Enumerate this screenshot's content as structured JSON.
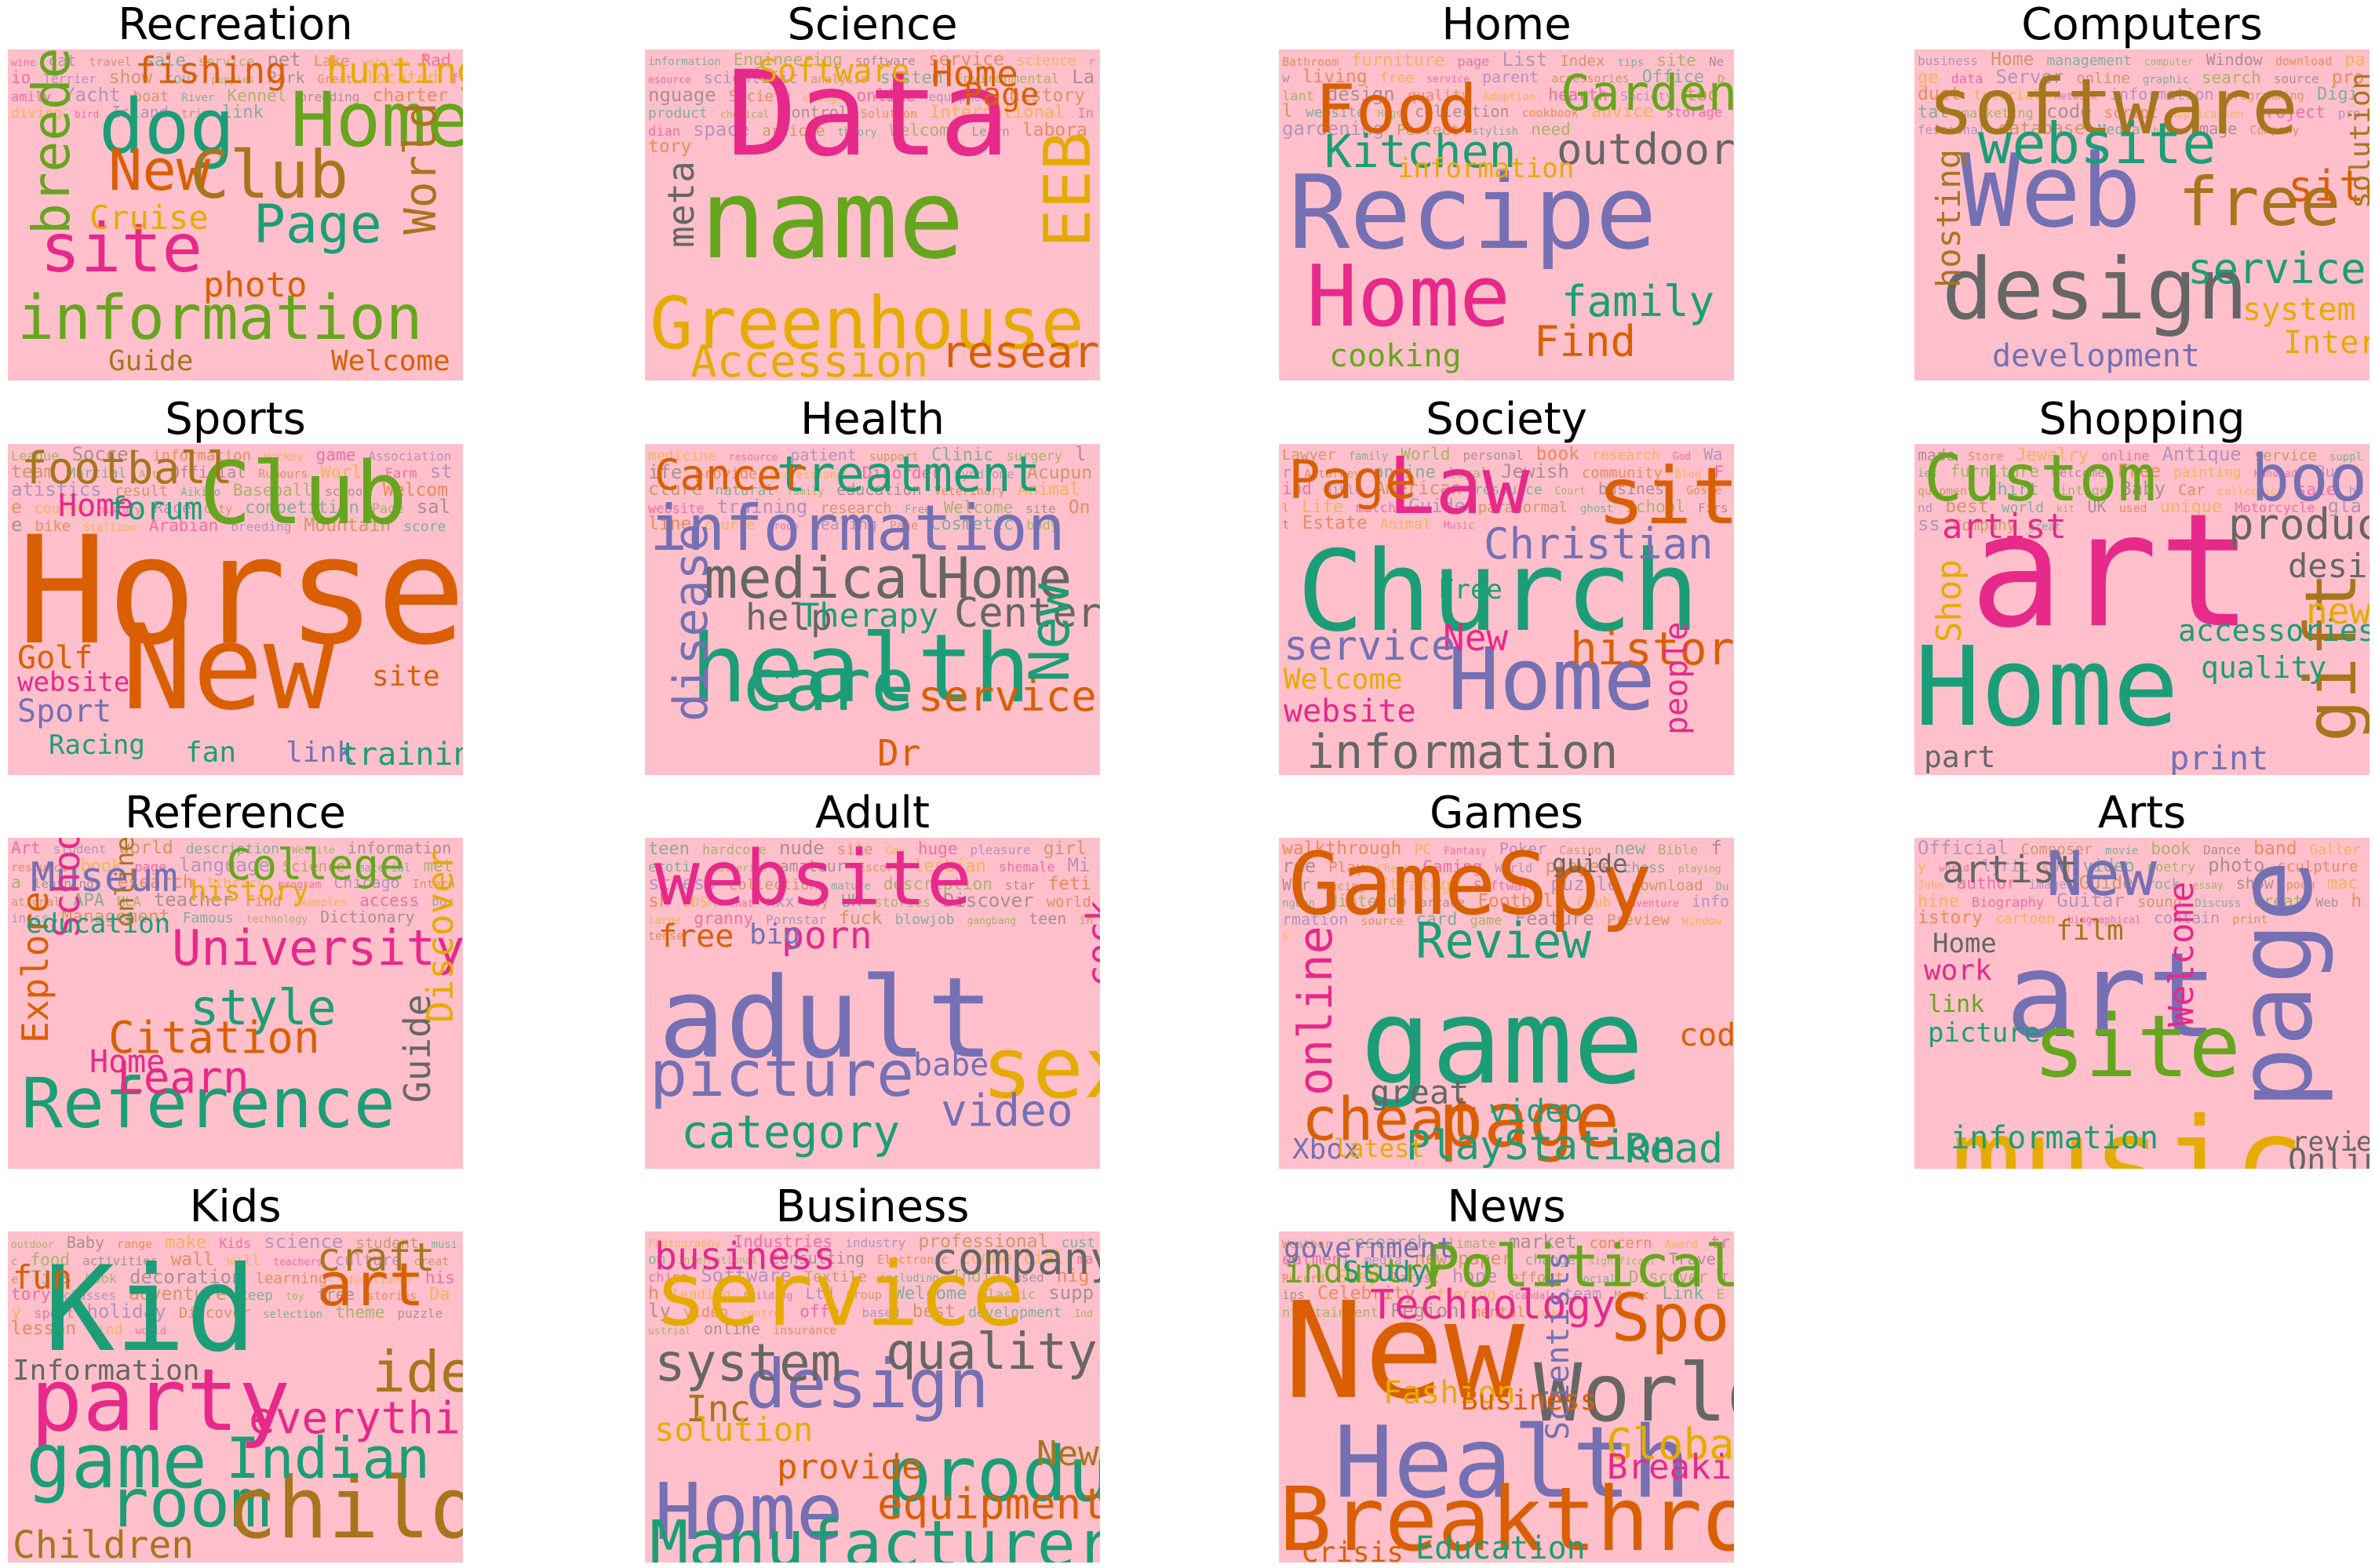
{
  "colors": {
    "panel_background": "#ffc0cb",
    "palette": [
      "#e7298a",
      "#1b9e77",
      "#d95f02",
      "#7570b3",
      "#66a61e",
      "#e6ab02",
      "#a6761d",
      "#666666"
    ]
  },
  "panels": [
    {
      "title": "Recreation",
      "words": [
        "information",
        "Home",
        "site",
        "Page",
        "dog",
        "New",
        "Club",
        "World",
        "breeder",
        "fishing",
        "hunting",
        "Cruise",
        "photo",
        "Guide",
        "Welcome",
        "wine",
        "cat",
        "travel",
        "sale",
        "service",
        "pet",
        "Lake",
        "website",
        "Radio",
        "Terrier",
        "show",
        "tour",
        "puppies",
        "Park",
        "Great",
        "located",
        "family",
        "Yacht",
        "boat",
        "River",
        "Kennel",
        "breeding",
        "charter",
        "diving",
        "bird",
        "Island",
        "trip",
        "link"
      ]
    },
    {
      "title": "Science",
      "words": [
        "Data",
        "name",
        "Greenhouse",
        "Accession",
        "research",
        "EEB",
        "meta",
        "Software",
        "Home",
        "Page",
        "information",
        "Engineering",
        "software",
        "service",
        "science",
        "resource",
        "scientific",
        "analysis",
        "system",
        "Environmental",
        "Language",
        "Society",
        "design",
        "online",
        "equipment",
        "history",
        "product",
        "chemical",
        "Control",
        "Solution",
        "International",
        "Indian",
        "space",
        "article",
        "theory",
        "Welcome",
        "Learn",
        "laboratory"
      ]
    },
    {
      "title": "Home",
      "words": [
        "Recipe",
        "Home",
        "Food",
        "Garden",
        "Kitchen",
        "outdoor",
        "family",
        "Find",
        "cooking",
        "information",
        "Bathroom",
        "furniture",
        "page",
        "List",
        "Index",
        "tips",
        "site",
        "New",
        "living",
        "free",
        "service",
        "parent",
        "accessories",
        "Office",
        "plant",
        "design",
        "quality",
        "Adoption",
        "hearth",
        "Society",
        "tool",
        "website",
        "Hugs",
        "collection",
        "cookbook",
        "advice",
        "storage",
        "gardening",
        "Perfect",
        "stylish",
        "need"
      ]
    },
    {
      "title": "Computers",
      "words": [
        "software",
        "Web",
        "design",
        "website",
        "free",
        "site",
        "service",
        "development",
        "hosting",
        "system",
        "Internet",
        "solution",
        "business",
        "Home",
        "management",
        "computer",
        "Window",
        "download",
        "page",
        "data",
        "Server",
        "online",
        "graphic",
        "search",
        "source",
        "product",
        "tutorial",
        "network",
        "information",
        "programming",
        "Digital",
        "marketing",
        "code",
        "script",
        "application",
        "project",
        "professional",
        "database",
        "Media",
        "help",
        "image",
        "Company"
      ]
    },
    {
      "title": "Sports",
      "words": [
        "Horse",
        "New",
        "Club",
        "football",
        "Home",
        "forum",
        "Golf",
        "website",
        "Sport",
        "Racing",
        "fan",
        "link",
        "training",
        "site",
        "League",
        "Soccer",
        "information",
        "Hockey",
        "game",
        "Association",
        "team",
        "Martial",
        "Art",
        "Official",
        "Rumours",
        "World",
        "Farm",
        "statistics",
        "result",
        "Aikido",
        "Baseball",
        "school",
        "Welcome",
        "course",
        "history",
        "Race",
        "City",
        "competition",
        "Page",
        "sale",
        "bike",
        "Stallion",
        "Arabian",
        "breeding",
        "Mountain",
        "score"
      ]
    },
    {
      "title": "Health",
      "words": [
        "health",
        "information",
        "medical",
        "Home",
        "care",
        "treatment",
        "Cancer",
        "help",
        "Therapy",
        "Center",
        "service",
        "disease",
        "New",
        "Dr",
        "medicine",
        "resource",
        "patient",
        "support",
        "Clinic",
        "surgery",
        "life",
        "provide",
        "professional",
        "Disorder",
        "Syndrome",
        "Acupuncture",
        "natural",
        "family",
        "education",
        "Veterinary",
        "Animal",
        "website",
        "training",
        "research",
        "Free",
        "Welcome",
        "site",
        "Online",
        "course",
        "Group",
        "healing",
        "Page",
        "Cosmetic",
        "body"
      ]
    },
    {
      "title": "Society",
      "words": [
        "Church",
        "Law",
        "site",
        "Home",
        "information",
        "Page",
        "Christian",
        "history",
        "New",
        "service",
        "Welcome",
        "website",
        "Free",
        "people",
        "Lawyer",
        "family",
        "World",
        "personal",
        "book",
        "research",
        "God",
        "War",
        "Attorney",
        "online",
        "legal",
        "Jewish",
        "community",
        "Blog",
        "Find",
        "Bible",
        "American",
        "resource",
        "Court",
        "business",
        "Gospel",
        "Life",
        "match",
        "Guide",
        "paranormal",
        "ghost",
        "School",
        "First",
        "Estate",
        "Animal",
        "Music"
      ]
    },
    {
      "title": "Shopping",
      "words": [
        "art",
        "Home",
        "Custom",
        "book",
        "gift",
        "product",
        "artist",
        "Shop",
        "quality",
        "design",
        "accessories",
        "new",
        "part",
        "print",
        "made",
        "Store",
        "Jewelry",
        "online",
        "Antique",
        "service",
        "supplies",
        "furniture",
        "Welcome",
        "Free",
        "painting",
        "Handmade",
        "Buy",
        "equipment",
        "shirt",
        "vintage",
        "Baby",
        "Car",
        "collection",
        "sale",
        "hand",
        "best",
        "world",
        "kit",
        "UK",
        "used",
        "unique",
        "Motorcycle",
        "glass",
        "Company",
        "great"
      ]
    },
    {
      "title": "Reference",
      "words": [
        "Reference",
        "University",
        "College",
        "Museum",
        "style",
        "School",
        "Citation",
        "Learn",
        "Home",
        "Guide",
        "Discover",
        "Explore",
        "education",
        "history",
        "online",
        "Art",
        "student",
        "world",
        "description",
        "Website",
        "information",
        "resource",
        "book",
        "page",
        "language",
        "Science",
        "material",
        "meta",
        "learning",
        "research",
        "library",
        "program",
        "Chicago",
        "International",
        "APA",
        "MLA",
        "teacher",
        "Find",
        "examples",
        "access",
        "business",
        "Management",
        "Famous",
        "technology",
        "Dictionary"
      ]
    },
    {
      "title": "Adult",
      "words": [
        "adult",
        "website",
        "picture",
        "sex",
        "category",
        "video",
        "porn",
        "cock",
        "free",
        "big",
        "babe",
        "teen",
        "hardcore",
        "nude",
        "site",
        "Gay",
        "huge",
        "pleasure",
        "girl",
        "erotic",
        "galleries",
        "amateur",
        "Escort",
        "lesbian",
        "shemale",
        "Mistress",
        "collection",
        "mature",
        "description",
        "star",
        "fetish",
        "BDSM",
        "chat",
        "xxx",
        "toy",
        "UK",
        "stories",
        "Discover",
        "world",
        "large",
        "granny",
        "Pornstar",
        "fuck",
        "blowjob",
        "gangbang",
        "teen",
        "intense"
      ]
    },
    {
      "title": "Games",
      "words": [
        "GameSpy",
        "game",
        "page",
        "Review",
        "cheat",
        "Read",
        "PlayStation",
        "online",
        "great",
        "Xbox",
        "latest",
        "video",
        "guide",
        "code",
        "walkthrough",
        "PC",
        "Fantasy",
        "Poker",
        "Casino",
        "new",
        "Bible",
        "free",
        "Play",
        "Check",
        "Gaming",
        "World",
        "player",
        "chess",
        "playing",
        "War",
        "Racing",
        "Strategy",
        "Software",
        "puzzle",
        "download",
        "Dungeon",
        "Nintendo",
        "arcade",
        "Football",
        "Club",
        "adventure",
        "information",
        "source",
        "card",
        "game",
        "Feature",
        "Preview",
        "Windows"
      ]
    },
    {
      "title": "Arts",
      "words": [
        "music",
        "art",
        "page",
        "site",
        "New",
        "artist",
        "information",
        "Online",
        "review",
        "film",
        "Home",
        "work",
        "link",
        "picture",
        "Welcome",
        "Official",
        "Composer",
        "movie",
        "book",
        "Dance",
        "band",
        "Gallery",
        "world",
        "lyric",
        "song",
        "video",
        "poetry",
        "photo",
        "sculpture",
        "John",
        "author",
        "image",
        "Guide",
        "rock",
        "essay",
        "show",
        "poem",
        "machine",
        "Biography",
        "Guitar",
        "sound",
        "Discuss",
        "Great",
        "Web",
        "history",
        "cartoon",
        "biographical",
        "contain",
        "print"
      ]
    },
    {
      "title": "Kids",
      "words": [
        "Kid",
        "party",
        "game",
        "room",
        "child",
        "Indian",
        "art",
        "idea",
        "everything",
        "craft",
        "fun",
        "Children",
        "Information",
        "outdoor",
        "Baby",
        "range",
        "make",
        "Kids",
        "science",
        "student",
        "music",
        "food",
        "activities",
        "wall",
        "will",
        "teachers",
        "culture",
        "create",
        "Tips",
        "book",
        "decoration",
        "learning",
        "educational",
        "history",
        "classes",
        "adventure",
        "keep",
        "toy",
        "free",
        "stories",
        "Day",
        "sport",
        "holiday",
        "Discover",
        "selection",
        "theme",
        "puzzle",
        "lesson",
        "Find",
        "world"
      ]
    },
    {
      "title": "Business",
      "words": [
        "service",
        "Home",
        "product",
        "Manufacturer",
        "design",
        "system",
        "quality",
        "business",
        "company",
        "Inc",
        "solution",
        "provide",
        "equipment",
        "New",
        "Photography",
        "Industries",
        "industry",
        "professional",
        "custom",
        "International",
        "consulting",
        "Electronic",
        "commercial",
        "machine",
        "Software",
        "Textile",
        "including",
        "India",
        "used",
        "high",
        "leading",
        "building",
        "Ltd",
        "Group",
        "Welcome",
        "plastic",
        "supply",
        "video",
        "control",
        "offer",
        "based",
        "best",
        "development",
        "Industrial",
        "online",
        "insurance"
      ]
    },
    {
      "title": "News",
      "words": [
        "New",
        "Health",
        "Breakthrough",
        "World",
        "Political",
        "Sport",
        "Technology",
        "Global",
        "Scientists",
        "industry",
        "government",
        "Study",
        "Fashion",
        "Business",
        "Education",
        "Crisis",
        "Breaking",
        "Weather",
        "research",
        "climate",
        "market",
        "concern",
        "Award",
        "treatment",
        "media",
        "newspaper",
        "change",
        "significant",
        "Travel",
        "Record",
        "Stay",
        "latest",
        "hope",
        "effort",
        "social",
        "Discover",
        "Tips",
        "Celebrity",
        "offering",
        "Scandal",
        "team",
        "Music",
        "Link",
        "Entertainment",
        "Region",
        "mental",
        "make"
      ]
    }
  ]
}
